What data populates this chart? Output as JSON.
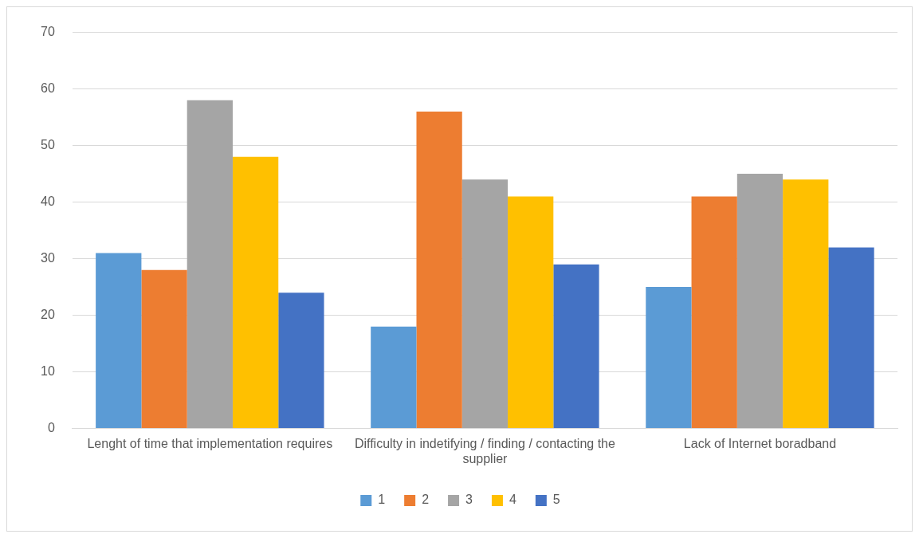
{
  "chart_data": {
    "type": "bar",
    "categories": [
      "Lenght of time that implementation requires",
      "Difficulty in indetifying / finding / contacting the supplier",
      "Lack of Internet boradband"
    ],
    "series": [
      {
        "name": "1",
        "color": "#5b9bd5",
        "values": [
          31,
          18,
          25
        ]
      },
      {
        "name": "2",
        "color": "#ed7d31",
        "values": [
          28,
          56,
          41
        ]
      },
      {
        "name": "3",
        "color": "#a5a5a5",
        "values": [
          58,
          44,
          45
        ]
      },
      {
        "name": "4",
        "color": "#ffc000",
        "values": [
          48,
          41,
          44
        ]
      },
      {
        "name": "5",
        "color": "#4472c4",
        "values": [
          24,
          29,
          32
        ]
      }
    ],
    "ylim": [
      0,
      70
    ],
    "yticks": [
      0,
      10,
      20,
      30,
      40,
      50,
      60,
      70
    ],
    "grid": "y",
    "legend": "bottom"
  }
}
